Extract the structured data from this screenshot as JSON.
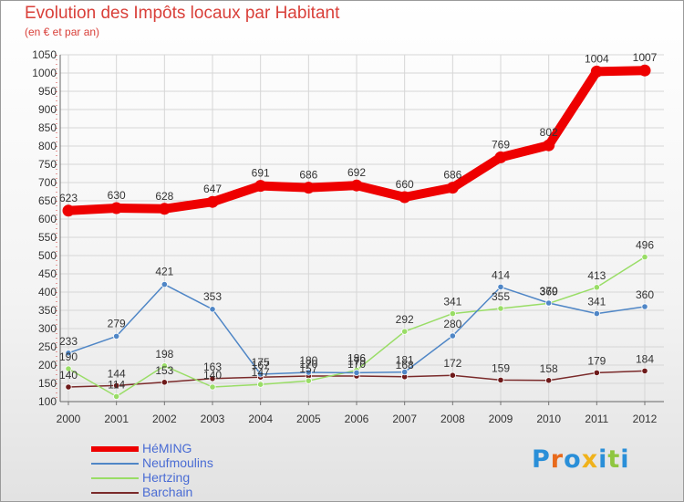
{
  "header": {
    "title": "Evolution des Impôts locaux par Habitant",
    "subtitle": "(en € et par an)"
  },
  "logo": {
    "text": "Proxiti"
  },
  "chart_data": {
    "type": "line",
    "title": "Evolution des Impôts locaux par Habitant",
    "subtitle": "(en € et par an)",
    "x": [
      "2000",
      "2001",
      "2002",
      "2003",
      "2004",
      "2005",
      "2006",
      "2007",
      "2008",
      "2009",
      "2010",
      "2011",
      "2012"
    ],
    "ylim": [
      100,
      1050
    ],
    "yticks": [
      100,
      150,
      200,
      250,
      300,
      350,
      400,
      450,
      500,
      550,
      600,
      650,
      700,
      750,
      800,
      850,
      900,
      950,
      1000,
      1050
    ],
    "grid": true,
    "legend_position": "bottom-left",
    "series": [
      {
        "name": "HéMING",
        "color": "#ee0000",
        "values": [
          623,
          630,
          628,
          647,
          691,
          686,
          692,
          660,
          686,
          769,
          802,
          1004,
          1007
        ]
      },
      {
        "name": "Neufmoulins",
        "color": "#4f86c6",
        "values": [
          233,
          279,
          421,
          353,
          175,
          180,
          179,
          181,
          280,
          414,
          370,
          341,
          360
        ]
      },
      {
        "name": "Hertzing",
        "color": "#99dd66",
        "values": [
          190,
          114,
          198,
          140,
          147,
          157,
          186,
          292,
          341,
          355,
          369,
          413,
          496
        ]
      },
      {
        "name": "Barchain",
        "color": "#7a2a2a",
        "values": [
          140,
          144,
          153,
          163,
          167,
          170,
          170,
          168,
          172,
          159,
          158,
          179,
          184
        ]
      }
    ]
  }
}
